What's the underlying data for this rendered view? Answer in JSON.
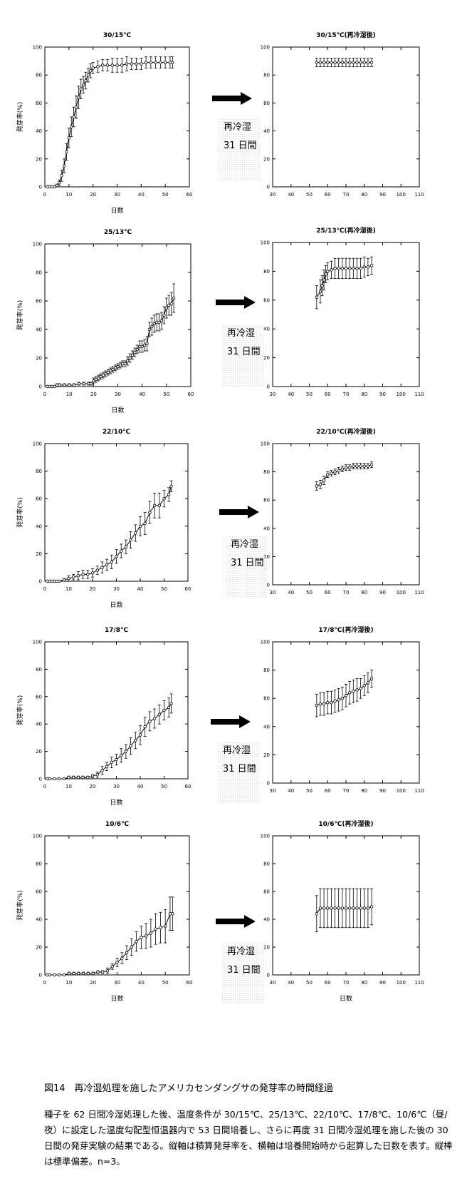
{
  "arrow_label_line1": "再冷湿",
  "arrow_label_line2": "31 日間",
  "figure_caption": "図14　再冷湿処理を施したアメリカセンダングサの発芽率の時間経過",
  "description": "種子を 62 日間冷湿処理した後、温度条件が 30/15℃、25/13℃、22/10℃、17/8℃、10/6℃（昼/夜）に設定した温度勾配型恒温器内で 53 日間培養し、さらに再度 31 日間冷湿処理を施した後の 30 日間の発芽実験の結果である。縦軸は積算発芽率を、横軸は培養開始時から起算した日数を表す。縦棒は標準偏差。n=3。",
  "chart_data": [
    {
      "type": "line",
      "title": "30/15℃",
      "xlabel": "日数",
      "ylabel": "発芽率(%)",
      "xlim": [
        0,
        60
      ],
      "ylim": [
        0,
        100
      ],
      "xticks": [
        0,
        10,
        20,
        30,
        40,
        50,
        60
      ],
      "yticks": [
        0,
        20,
        40,
        60,
        80,
        100
      ],
      "grid": false,
      "x": [
        1,
        2,
        3,
        4,
        5,
        6,
        7,
        8,
        9,
        10,
        11,
        12,
        13,
        14,
        15,
        16,
        17,
        18,
        19,
        20,
        22,
        24,
        26,
        28,
        30,
        32,
        34,
        36,
        38,
        40,
        42,
        44,
        46,
        48,
        50,
        52,
        53
      ],
      "y": [
        0,
        0,
        0,
        0,
        1,
        3,
        8,
        15,
        25,
        35,
        43,
        50,
        57,
        64,
        70,
        73,
        76,
        80,
        83,
        85,
        86,
        87,
        87,
        87,
        87,
        87,
        88,
        88,
        88,
        88,
        89,
        89,
        89,
        89,
        89,
        89,
        89
      ],
      "sd": [
        0,
        0,
        0,
        0,
        1,
        2,
        4,
        5,
        6,
        7,
        7,
        7,
        8,
        8,
        7,
        6,
        6,
        5,
        5,
        4,
        4,
        4,
        4,
        5,
        5,
        5,
        5,
        4,
        4,
        4,
        4,
        4,
        4,
        4,
        4,
        4,
        4
      ]
    },
    {
      "type": "line",
      "title": "30/15℃(再冷湿後)",
      "xlabel": "",
      "ylabel": "",
      "xlim": [
        30,
        110
      ],
      "ylim": [
        0,
        100
      ],
      "xticks": [
        30,
        40,
        50,
        60,
        70,
        80,
        90,
        100,
        110
      ],
      "yticks": [
        0,
        20,
        40,
        60,
        80,
        100
      ],
      "grid": false,
      "x": [
        54,
        56,
        58,
        60,
        62,
        64,
        66,
        68,
        70,
        72,
        74,
        76,
        78,
        80,
        82,
        84
      ],
      "y": [
        89,
        89,
        89,
        89,
        89,
        89,
        89,
        89,
        89,
        89,
        89,
        89,
        89,
        89,
        89,
        89
      ],
      "sd": [
        3,
        3,
        3,
        3,
        3,
        3,
        3,
        3,
        3,
        3,
        3,
        3,
        3,
        3,
        3,
        3
      ]
    },
    {
      "type": "line",
      "title": "25/13℃",
      "xlabel": "日数",
      "ylabel": "発芽率(%)",
      "xlim": [
        0,
        60
      ],
      "ylim": [
        0,
        100
      ],
      "xticks": [
        0,
        10,
        20,
        30,
        40,
        50,
        60
      ],
      "yticks": [
        0,
        20,
        40,
        60,
        80,
        100
      ],
      "grid": false,
      "x": [
        1,
        2,
        3,
        4,
        5,
        6,
        8,
        10,
        12,
        14,
        16,
        18,
        19,
        20,
        21,
        22,
        23,
        24,
        25,
        26,
        27,
        28,
        29,
        30,
        31,
        32,
        33,
        34,
        35,
        36,
        37,
        38,
        39,
        40,
        41,
        42,
        43,
        44,
        45,
        46,
        47,
        48,
        49,
        50,
        51,
        52,
        53
      ],
      "y": [
        0,
        0,
        0,
        0,
        1,
        1,
        1,
        1,
        1,
        2,
        2,
        2,
        2,
        4,
        5,
        6,
        7,
        8,
        9,
        10,
        11,
        12,
        13,
        14,
        15,
        16,
        16,
        18,
        20,
        22,
        24,
        26,
        28,
        28,
        29,
        30,
        40,
        42,
        44,
        45,
        45,
        46,
        50,
        55,
        57,
        58,
        62
      ],
      "sd": [
        0,
        0,
        0,
        0,
        1,
        1,
        1,
        1,
        1,
        1,
        1,
        1,
        1,
        2,
        2,
        2,
        2,
        2,
        2,
        2,
        2,
        2,
        2,
        2,
        2,
        2,
        2,
        3,
        3,
        3,
        3,
        3,
        4,
        4,
        4,
        5,
        5,
        6,
        6,
        6,
        6,
        6,
        6,
        7,
        7,
        8,
        10
      ]
    },
    {
      "type": "line",
      "title": "25/13℃(再冷湿後)",
      "xlabel": "",
      "ylabel": "",
      "xlim": [
        30,
        110
      ],
      "ylim": [
        0,
        100
      ],
      "xticks": [
        30,
        40,
        50,
        60,
        70,
        80,
        90,
        100,
        110
      ],
      "yticks": [
        0,
        20,
        40,
        60,
        80,
        100
      ],
      "grid": false,
      "x": [
        54,
        56,
        57,
        58,
        59,
        60,
        62,
        64,
        66,
        68,
        70,
        72,
        74,
        76,
        78,
        80,
        82,
        84
      ],
      "y": [
        62,
        66,
        70,
        74,
        78,
        80,
        81,
        82,
        82,
        82,
        82,
        82,
        82,
        82,
        82,
        83,
        83,
        84
      ],
      "sd": [
        8,
        8,
        7,
        7,
        6,
        6,
        6,
        7,
        7,
        7,
        7,
        7,
        7,
        7,
        7,
        7,
        6,
        6
      ]
    },
    {
      "type": "line",
      "title": "22/10℃",
      "xlabel": "日数",
      "ylabel": "発芽率(%)",
      "xlim": [
        0,
        60
      ],
      "ylim": [
        0,
        100
      ],
      "xticks": [
        0,
        10,
        20,
        30,
        40,
        50,
        60
      ],
      "yticks": [
        0,
        20,
        40,
        60,
        80,
        100
      ],
      "grid": false,
      "x": [
        1,
        2,
        3,
        4,
        5,
        6,
        8,
        10,
        12,
        14,
        16,
        18,
        20,
        22,
        24,
        26,
        28,
        30,
        32,
        34,
        36,
        38,
        40,
        42,
        44,
        46,
        48,
        50,
        52,
        53
      ],
      "y": [
        0,
        0,
        0,
        0,
        0,
        0,
        1,
        2,
        3,
        4,
        5,
        5,
        6,
        8,
        10,
        12,
        14,
        18,
        22,
        25,
        30,
        35,
        40,
        42,
        50,
        55,
        55,
        60,
        63,
        69
      ],
      "sd": [
        0,
        0,
        0,
        0,
        0,
        0,
        1,
        2,
        2,
        3,
        3,
        3,
        3,
        3,
        4,
        4,
        5,
        5,
        5,
        5,
        6,
        6,
        7,
        8,
        8,
        9,
        9,
        6,
        5,
        4
      ]
    },
    {
      "type": "line",
      "title": "22/10℃(再冷湿後)",
      "xlabel": "",
      "ylabel": "",
      "xlim": [
        30,
        110
      ],
      "ylim": [
        0,
        100
      ],
      "xticks": [
        30,
        40,
        50,
        60,
        70,
        80,
        90,
        100,
        110
      ],
      "yticks": [
        0,
        20,
        40,
        60,
        80,
        100
      ],
      "grid": false,
      "x": [
        54,
        56,
        58,
        60,
        62,
        64,
        66,
        68,
        70,
        72,
        74,
        76,
        78,
        80,
        82,
        84
      ],
      "y": [
        70,
        71,
        74,
        78,
        79,
        80,
        81,
        82,
        83,
        83,
        84,
        84,
        84,
        84,
        84,
        85
      ],
      "sd": [
        3,
        3,
        3,
        2,
        2,
        2,
        2,
        2,
        2,
        2,
        2,
        2,
        2,
        2,
        2,
        2
      ]
    },
    {
      "type": "line",
      "title": "17/8℃",
      "xlabel": "日数",
      "ylabel": "発芽率(%)",
      "xlim": [
        0,
        60
      ],
      "ylim": [
        0,
        100
      ],
      "xticks": [
        0,
        10,
        20,
        30,
        40,
        50,
        60
      ],
      "yticks": [
        0,
        20,
        40,
        60,
        80,
        100
      ],
      "grid": false,
      "x": [
        1,
        2,
        4,
        6,
        8,
        10,
        12,
        14,
        16,
        18,
        20,
        22,
        24,
        26,
        28,
        30,
        32,
        34,
        36,
        38,
        40,
        42,
        44,
        46,
        48,
        50,
        52,
        53
      ],
      "y": [
        0,
        0,
        0,
        0,
        0,
        1,
        1,
        1,
        1,
        1,
        2,
        3,
        6,
        9,
        12,
        14,
        17,
        20,
        24,
        28,
        32,
        38,
        42,
        44,
        47,
        50,
        52,
        55
      ],
      "sd": [
        0,
        0,
        0,
        0,
        0,
        1,
        1,
        1,
        1,
        1,
        1,
        2,
        3,
        3,
        4,
        4,
        5,
        5,
        6,
        6,
        7,
        7,
        7,
        7,
        7,
        7,
        7,
        7
      ]
    },
    {
      "type": "line",
      "title": "17/8℃(再冷湿後)",
      "xlabel": "",
      "ylabel": "",
      "xlim": [
        30,
        110
      ],
      "ylim": [
        0,
        100
      ],
      "xticks": [
        30,
        40,
        50,
        60,
        70,
        80,
        90,
        100,
        110
      ],
      "yticks": [
        0,
        20,
        40,
        60,
        80,
        100
      ],
      "grid": false,
      "x": [
        54,
        56,
        58,
        60,
        62,
        64,
        66,
        68,
        70,
        72,
        74,
        76,
        78,
        80,
        82,
        84
      ],
      "y": [
        55,
        56,
        56,
        57,
        57,
        58,
        59,
        60,
        62,
        64,
        65,
        66,
        67,
        69,
        71,
        74
      ],
      "sd": [
        8,
        8,
        8,
        8,
        8,
        8,
        8,
        8,
        8,
        8,
        8,
        8,
        7,
        7,
        7,
        6
      ]
    },
    {
      "type": "line",
      "title": "10/6℃",
      "xlabel": "日数",
      "ylabel": "発芽率(%)",
      "xlim": [
        0,
        60
      ],
      "ylim": [
        0,
        100
      ],
      "xticks": [
        0,
        10,
        20,
        30,
        40,
        50,
        60
      ],
      "yticks": [
        0,
        20,
        40,
        60,
        80,
        100
      ],
      "grid": false,
      "x": [
        1,
        2,
        4,
        6,
        8,
        10,
        12,
        14,
        16,
        18,
        20,
        22,
        24,
        26,
        28,
        30,
        32,
        34,
        36,
        38,
        40,
        42,
        44,
        46,
        48,
        50,
        52,
        53
      ],
      "y": [
        0,
        0,
        0,
        0,
        0,
        1,
        1,
        1,
        1,
        1,
        1,
        2,
        2,
        3,
        6,
        9,
        12,
        16,
        20,
        24,
        27,
        28,
        30,
        33,
        34,
        35,
        44,
        44
      ],
      "sd": [
        0,
        0,
        0,
        0,
        0,
        1,
        1,
        1,
        1,
        1,
        1,
        1,
        1,
        2,
        2,
        3,
        4,
        5,
        6,
        7,
        8,
        9,
        10,
        11,
        11,
        12,
        12,
        12
      ]
    },
    {
      "type": "line",
      "title": "10/6℃(再冷湿後)",
      "xlabel": "日数",
      "ylabel": "",
      "xlim": [
        30,
        110
      ],
      "ylim": [
        0,
        100
      ],
      "xticks": [
        30,
        40,
        50,
        60,
        70,
        80,
        90,
        100,
        110
      ],
      "yticks": [
        0,
        20,
        40,
        60,
        80,
        100
      ],
      "grid": false,
      "x": [
        54,
        56,
        58,
        60,
        62,
        64,
        66,
        68,
        70,
        72,
        74,
        76,
        78,
        80,
        82,
        84
      ],
      "y": [
        44,
        48,
        48,
        48,
        48,
        48,
        48,
        48,
        48,
        48,
        48,
        48,
        48,
        48,
        48,
        49
      ],
      "sd": [
        13,
        14,
        14,
        14,
        14,
        14,
        14,
        14,
        14,
        14,
        14,
        14,
        14,
        14,
        14,
        13
      ]
    }
  ]
}
